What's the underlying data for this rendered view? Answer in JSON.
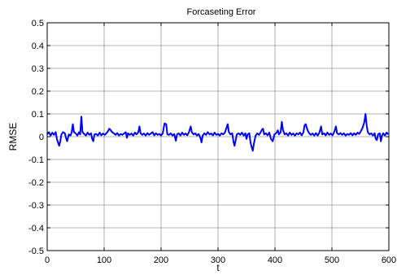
{
  "chart_data": {
    "type": "line",
    "title": "Forcaseting Error",
    "xlabel": "t",
    "ylabel": "RMSE",
    "xlim": [
      0,
      600
    ],
    "ylim": [
      -0.5,
      0.5
    ],
    "x_ticks": [
      0,
      100,
      200,
      300,
      400,
      500,
      600
    ],
    "x_tick_labels": [
      "0",
      "100",
      "200",
      "300",
      "400",
      "500",
      "600"
    ],
    "y_ticks": [
      -0.5,
      -0.4,
      -0.3,
      -0.2,
      -0.1,
      0,
      0.1,
      0.2,
      0.3,
      0.4,
      0.5
    ],
    "y_tick_labels": [
      "-0.5",
      "-0.4",
      "-0.3",
      "-0.2",
      "-0.1",
      "0",
      "0.1",
      "0.2",
      "0.3",
      "0.4",
      "0.5"
    ],
    "grid": true,
    "series": [
      {
        "color": "#0000ff",
        "points": [
          [
            0,
            0.01
          ],
          [
            3,
            0.02
          ],
          [
            6,
            0.005
          ],
          [
            9,
            0.018
          ],
          [
            12,
            0.008
          ],
          [
            15,
            0.02
          ],
          [
            17,
            -0.01
          ],
          [
            19,
            -0.025
          ],
          [
            21,
            -0.04
          ],
          [
            23,
            -0.02
          ],
          [
            25,
            0.01
          ],
          [
            28,
            0.02
          ],
          [
            31,
            0.015
          ],
          [
            33,
            -0.005
          ],
          [
            35,
            -0.02
          ],
          [
            38,
            0.01
          ],
          [
            41,
            0.005
          ],
          [
            43,
            0.02
          ],
          [
            45,
            0.055
          ],
          [
            47,
            0.02
          ],
          [
            50,
            0.015
          ],
          [
            53,
            0.005
          ],
          [
            56,
            0.02
          ],
          [
            58,
            0.01
          ],
          [
            60,
            0.088
          ],
          [
            62,
            0.02
          ],
          [
            65,
            0.012
          ],
          [
            68,
            0.005
          ],
          [
            71,
            0.018
          ],
          [
            74,
            0.008
          ],
          [
            77,
            0.015
          ],
          [
            79,
            -0.01
          ],
          [
            81,
            -0.02
          ],
          [
            83,
            0.01
          ],
          [
            86,
            0.012
          ],
          [
            89,
            0.005
          ],
          [
            92,
            0.018
          ],
          [
            95,
            0.006
          ],
          [
            98,
            0.014
          ],
          [
            101,
            0.008
          ],
          [
            104,
            0.015
          ],
          [
            107,
            0.025
          ],
          [
            109,
            0.035
          ],
          [
            111,
            0.03
          ],
          [
            114,
            0.02
          ],
          [
            117,
            0.015
          ],
          [
            120,
            0.008
          ],
          [
            123,
            0.016
          ],
          [
            126,
            0.005
          ],
          [
            129,
            0.012
          ],
          [
            132,
            0.008
          ],
          [
            135,
            0.014
          ],
          [
            138,
            0.02
          ],
          [
            140,
            -0.005
          ],
          [
            142,
            0.015
          ],
          [
            145,
            0.008
          ],
          [
            148,
            0.014
          ],
          [
            151,
            0.005
          ],
          [
            154,
            0.018
          ],
          [
            157,
            0.01
          ],
          [
            160,
            0.02
          ],
          [
            162,
            0.045
          ],
          [
            164,
            0.015
          ],
          [
            167,
            0.008
          ],
          [
            170,
            0.014
          ],
          [
            173,
            0.005
          ],
          [
            176,
            0.016
          ],
          [
            179,
            0.008
          ],
          [
            182,
            0.014
          ],
          [
            185,
            0.02
          ],
          [
            188,
            0.006
          ],
          [
            191,
            0.015
          ],
          [
            194,
            0.008
          ],
          [
            197,
            0.012
          ],
          [
            200,
            0.005
          ],
          [
            203,
            0.015
          ],
          [
            206,
            0.058
          ],
          [
            209,
            0.055
          ],
          [
            211,
            0.01
          ],
          [
            214,
            0.008
          ],
          [
            217,
            0.015
          ],
          [
            220,
            0.005
          ],
          [
            223,
            0.012
          ],
          [
            226,
            -0.018
          ],
          [
            228,
            0.01
          ],
          [
            231,
            0.015
          ],
          [
            234,
            0.005
          ],
          [
            237,
            0.018
          ],
          [
            240,
            0.008
          ],
          [
            243,
            0.014
          ],
          [
            246,
            0.006
          ],
          [
            249,
            0.02
          ],
          [
            252,
            0.045
          ],
          [
            254,
            0.02
          ],
          [
            257,
            0.01
          ],
          [
            260,
            0.015
          ],
          [
            263,
            0.005
          ],
          [
            266,
            0.012
          ],
          [
            269,
            -0.005
          ],
          [
            271,
            -0.025
          ],
          [
            273,
            0.005
          ],
          [
            276,
            0.015
          ],
          [
            279,
            0.008
          ],
          [
            282,
            0.02
          ],
          [
            285,
            0.01
          ],
          [
            288,
            0.014
          ],
          [
            291,
            0.006
          ],
          [
            294,
            0.018
          ],
          [
            297,
            0.008
          ],
          [
            300,
            0.012
          ],
          [
            303,
            0.005
          ],
          [
            306,
            0.015
          ],
          [
            309,
            0.01
          ],
          [
            312,
            0.018
          ],
          [
            315,
            0.04
          ],
          [
            317,
            0.055
          ],
          [
            319,
            0.02
          ],
          [
            322,
            0.01
          ],
          [
            325,
            0.015
          ],
          [
            327,
            -0.02
          ],
          [
            329,
            -0.04
          ],
          [
            331,
            -0.015
          ],
          [
            333,
            0.01
          ],
          [
            336,
            0.015
          ],
          [
            339,
            0.008
          ],
          [
            342,
            0.018
          ],
          [
            345,
            0.005
          ],
          [
            348,
            0.015
          ],
          [
            350,
            -0.01
          ],
          [
            352,
            0.01
          ],
          [
            355,
            0.015
          ],
          [
            357,
            -0.025
          ],
          [
            359,
            -0.045
          ],
          [
            361,
            -0.062
          ],
          [
            363,
            -0.03
          ],
          [
            366,
            0.005
          ],
          [
            369,
            0.015
          ],
          [
            372,
            0.008
          ],
          [
            375,
            0.02
          ],
          [
            377,
            0.03
          ],
          [
            379,
            0.035
          ],
          [
            381,
            0.01
          ],
          [
            384,
            0.015
          ],
          [
            387,
            0.006
          ],
          [
            390,
            0.018
          ],
          [
            393,
            -0.01
          ],
          [
            396,
            -0.02
          ],
          [
            399,
            0.01
          ],
          [
            402,
            0.015
          ],
          [
            405,
            0.028
          ],
          [
            407,
            0.01
          ],
          [
            410,
            0.02
          ],
          [
            412,
            0.065
          ],
          [
            414,
            0.03
          ],
          [
            417,
            0.01
          ],
          [
            420,
            0.015
          ],
          [
            423,
            0.005
          ],
          [
            426,
            0.018
          ],
          [
            429,
            0.008
          ],
          [
            432,
            0.014
          ],
          [
            435,
            0.005
          ],
          [
            438,
            0.015
          ],
          [
            441,
            0.01
          ],
          [
            444,
            0.018
          ],
          [
            447,
            0.006
          ],
          [
            450,
            0.02
          ],
          [
            452,
            0.05
          ],
          [
            454,
            0.055
          ],
          [
            457,
            0.03
          ],
          [
            460,
            0.015
          ],
          [
            463,
            0.008
          ],
          [
            466,
            0.014
          ],
          [
            469,
            0.005
          ],
          [
            472,
            0.016
          ],
          [
            475,
            0.005
          ],
          [
            478,
            0.018
          ],
          [
            481,
            0.045
          ],
          [
            483,
            0.01
          ],
          [
            486,
            0.015
          ],
          [
            489,
            0.006
          ],
          [
            492,
            0.018
          ],
          [
            495,
            0.008
          ],
          [
            498,
            0.014
          ],
          [
            501,
            0.006
          ],
          [
            504,
            0.02
          ],
          [
            507,
            0.045
          ],
          [
            509,
            0.015
          ],
          [
            512,
            0.01
          ],
          [
            515,
            0.016
          ],
          [
            518,
            0.008
          ],
          [
            521,
            0.015
          ],
          [
            524,
            0.005
          ],
          [
            527,
            0.012
          ],
          [
            530,
            0.008
          ],
          [
            533,
            0.016
          ],
          [
            536,
            0.006
          ],
          [
            539,
            0.015
          ],
          [
            542,
            0.008
          ],
          [
            545,
            0.018
          ],
          [
            548,
            0.012
          ],
          [
            551,
            0.025
          ],
          [
            554,
            0.04
          ],
          [
            557,
            0.065
          ],
          [
            559,
            0.1
          ],
          [
            561,
            0.05
          ],
          [
            563,
            0.02
          ],
          [
            566,
            0.01
          ],
          [
            569,
            0.015
          ],
          [
            572,
            0.005
          ],
          [
            575,
            0.015
          ],
          [
            577,
            -0.01
          ],
          [
            579,
            -0.015
          ],
          [
            581,
            0.01
          ],
          [
            584,
            0.015
          ],
          [
            586,
            -0.02
          ],
          [
            588,
            0.005
          ],
          [
            590,
            0.015
          ],
          [
            593,
            0.005
          ],
          [
            596,
            0.018
          ],
          [
            599,
            0.01
          ]
        ]
      }
    ]
  }
}
